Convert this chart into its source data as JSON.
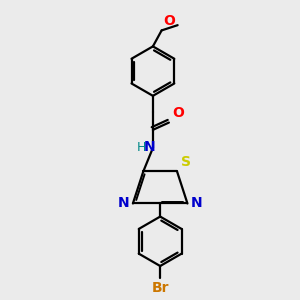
{
  "background_color": "#ebebeb",
  "bond_color": "#000000",
  "N_color": "#0000cc",
  "S_color": "#cccc00",
  "O_color": "#ff0000",
  "Br_color": "#cc7700",
  "H_color": "#008888",
  "figsize": [
    3.0,
    3.0
  ],
  "dpi": 100,
  "xlim": [
    0,
    10
  ],
  "ylim": [
    0,
    10
  ]
}
